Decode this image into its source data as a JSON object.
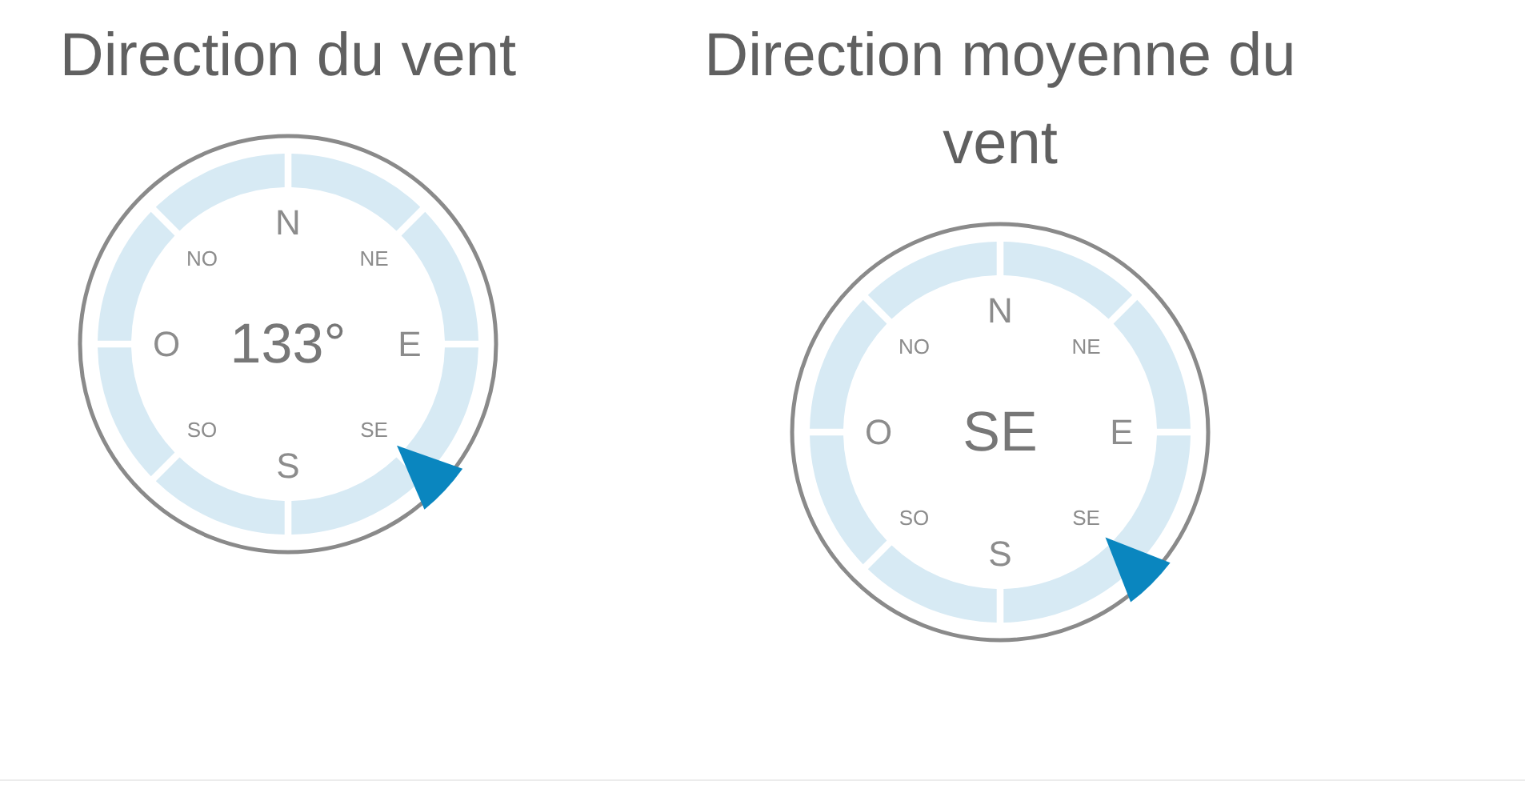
{
  "chart_data": [
    {
      "type": "other",
      "title": "Direction du vent",
      "categories": [
        null
      ],
      "values": [
        133
      ],
      "value_labels": [
        "133°"
      ],
      "annotations": [
        "N",
        "NE",
        "E",
        "SE",
        "S",
        "SO",
        "O",
        "NO"
      ]
    },
    {
      "type": "other",
      "title": "Direction moyenne du vent",
      "categories": [
        "N",
        "NE",
        "E",
        "SE",
        "S",
        "SO",
        "O",
        "NO"
      ],
      "needle": "SE"
    }
  ]
}
